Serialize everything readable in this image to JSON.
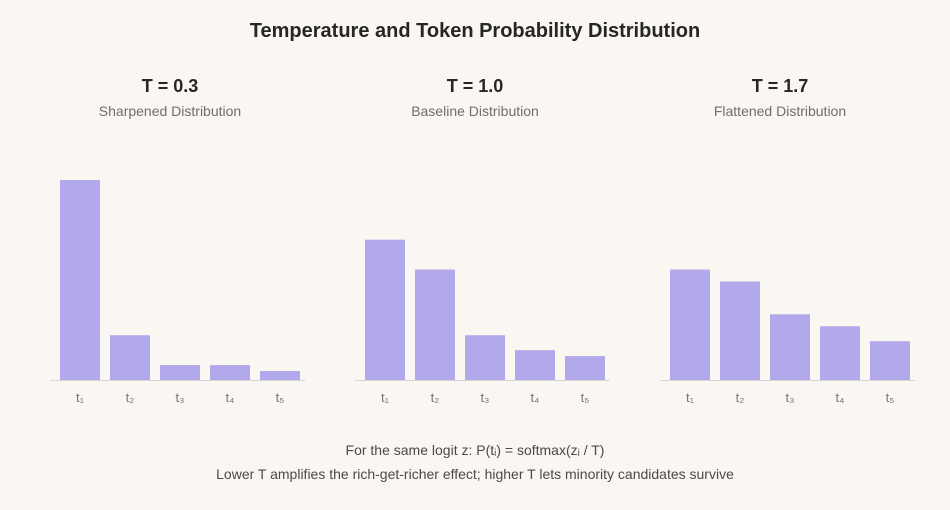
{
  "title": "Temperature and Token Probability Distribution",
  "footer": {
    "line1": "For the same logit z: P(tᵢ) = softmax(zᵢ / T)",
    "line2": "Lower T amplifies the rich-get-richer effect; higher T lets minority candidates survive"
  },
  "colors": {
    "bar": "#b2a8ec",
    "background": "#faf6f1"
  },
  "chart_data": [
    {
      "type": "bar",
      "title": "T = 0.3",
      "subtitle": "Sharpened Distribution",
      "categories": [
        "t₁",
        "t₂",
        "t₃",
        "t₄",
        "t₅"
      ],
      "values": [
        0.67,
        0.15,
        0.05,
        0.05,
        0.03
      ],
      "ylim": [
        0,
        0.67
      ]
    },
    {
      "type": "bar",
      "title": "T = 1.0",
      "subtitle": "Baseline Distribution",
      "categories": [
        "t₁",
        "t₂",
        "t₃",
        "t₄",
        "t₅"
      ],
      "values": [
        0.47,
        0.37,
        0.15,
        0.1,
        0.08
      ],
      "ylim": [
        0,
        0.67
      ]
    },
    {
      "type": "bar",
      "title": "T = 1.7",
      "subtitle": "Flattened Distribution",
      "categories": [
        "t₁",
        "t₂",
        "t₃",
        "t₄",
        "t₅"
      ],
      "values": [
        0.37,
        0.33,
        0.22,
        0.18,
        0.13
      ],
      "ylim": [
        0,
        0.67
      ]
    }
  ]
}
